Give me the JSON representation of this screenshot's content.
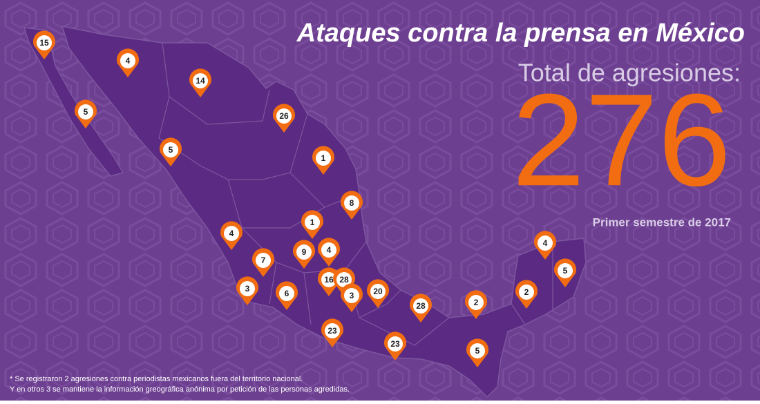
{
  "header": {
    "title": "Ataques contra la prensa en México",
    "subtitle": "Total de agresiones:",
    "total": 276,
    "period": "Primer semestre de 2017"
  },
  "markers": [
    {
      "count": 15
    },
    {
      "count": 4
    },
    {
      "count": 14
    },
    {
      "count": 5
    },
    {
      "count": 26
    },
    {
      "count": 5
    },
    {
      "count": 1
    },
    {
      "count": 8
    },
    {
      "count": 1
    },
    {
      "count": 4
    },
    {
      "count": 9
    },
    {
      "count": 4
    },
    {
      "count": 7
    },
    {
      "count": 16
    },
    {
      "count": 28
    },
    {
      "count": 3
    },
    {
      "count": 6
    },
    {
      "count": 3
    },
    {
      "count": 20
    },
    {
      "count": 28
    },
    {
      "count": 2
    },
    {
      "count": 2
    },
    {
      "count": 4
    },
    {
      "count": 5
    },
    {
      "count": 23
    },
    {
      "count": 23
    },
    {
      "count": 5
    }
  ],
  "footnotes": [
    "* Se registraron 2 agresiones contra periodistas mexicanos fuera del territorio nacional.",
    "Y en otros 3 se mantiene la información greográfica anónima por petición de las personas agredidas."
  ]
}
